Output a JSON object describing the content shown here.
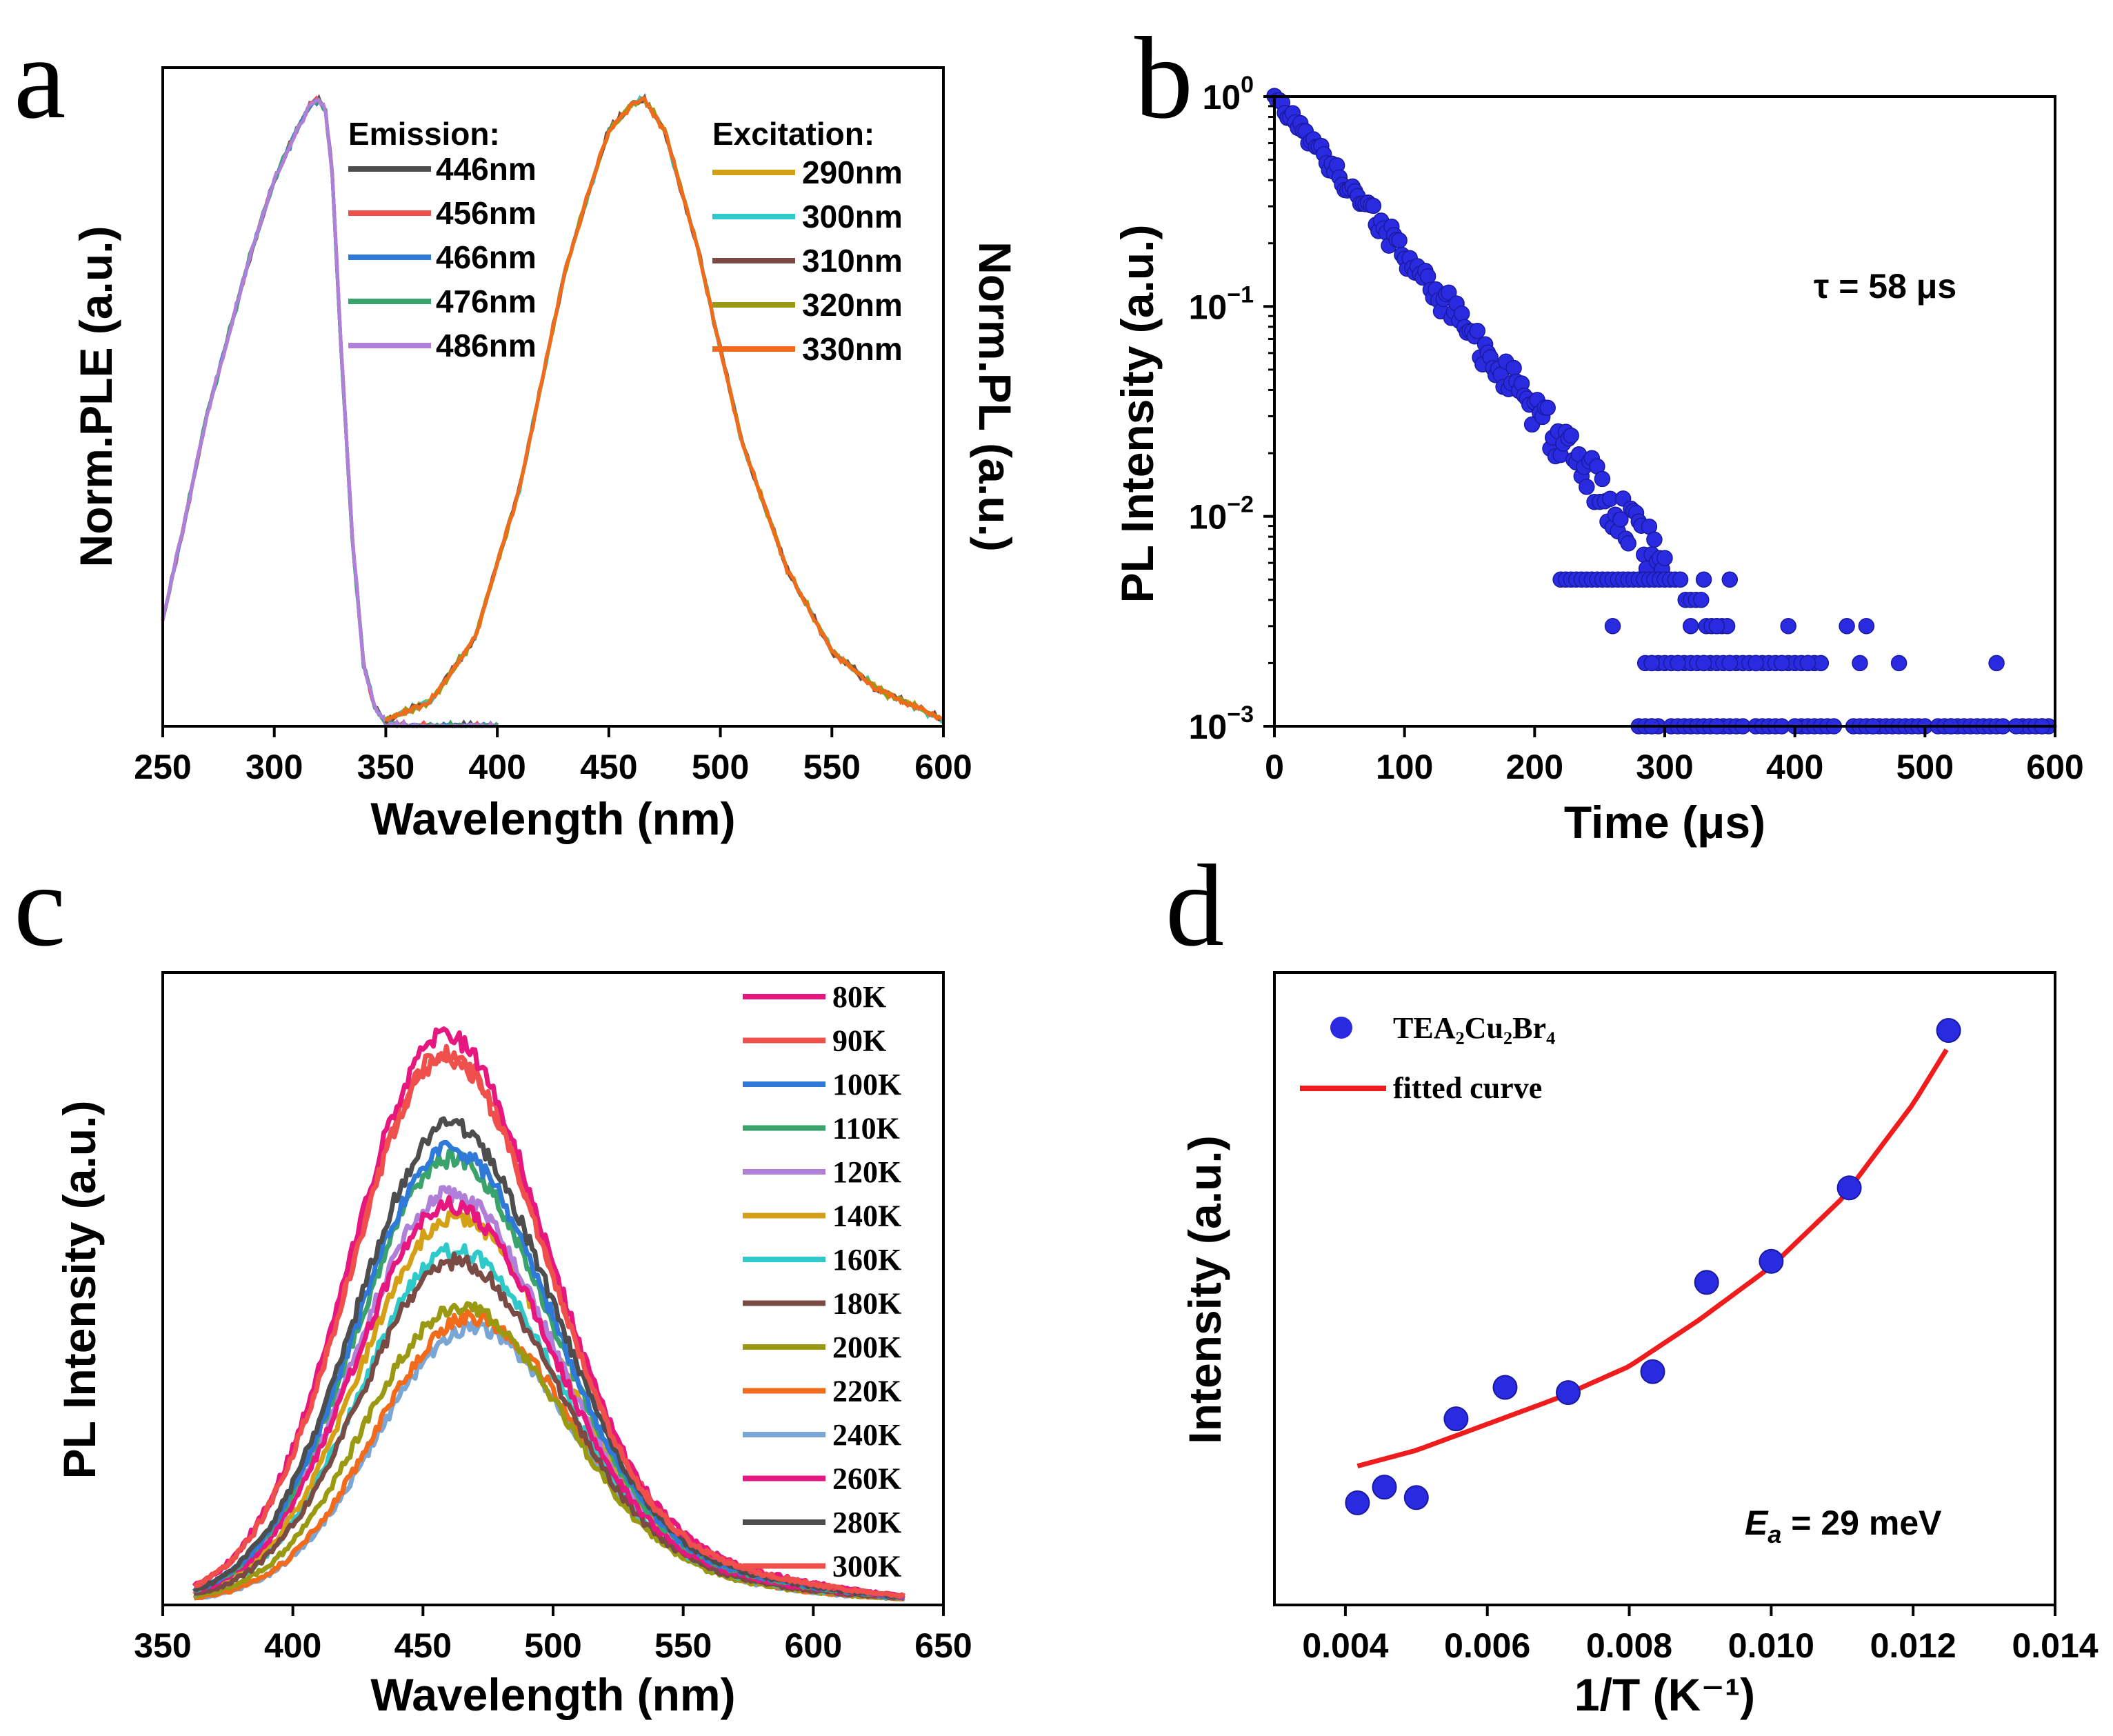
{
  "chart_data": [
    {
      "panel": "a",
      "type": "line",
      "xlabel": "Wavelength (nm)",
      "ylabel_left": "Norm.PLE (a.u.)",
      "ylabel_right": "Norm.PL (a.u.)",
      "xlim": [
        250,
        600
      ],
      "ylim": [
        0,
        1.05
      ],
      "xticks": [
        250,
        300,
        350,
        400,
        450,
        500,
        550,
        600
      ],
      "emission_legend_title": "Emission:",
      "excitation_legend_title": "Excitation:",
      "ple_series": [
        {
          "name": "446nm",
          "color": "#4d4d4d"
        },
        {
          "name": "456nm",
          "color": "#f0504c"
        },
        {
          "name": "466nm",
          "color": "#2f7ad8"
        },
        {
          "name": "476nm",
          "color": "#3aa36b"
        },
        {
          "name": "486nm",
          "color": "#b07fd9"
        }
      ],
      "pl_series": [
        {
          "name": "290nm",
          "color": "#d4a015"
        },
        {
          "name": "300nm",
          "color": "#2fc9c9"
        },
        {
          "name": "310nm",
          "color": "#7a4a45"
        },
        {
          "name": "320nm",
          "color": "#9a9a12"
        },
        {
          "name": "330nm",
          "color": "#f26a1b"
        }
      ],
      "ple_curve": {
        "x": [
          250,
          260,
          270,
          280,
          290,
          300,
          310,
          316,
          320,
          323,
          326,
          330,
          335,
          340,
          345,
          350,
          360,
          400
        ],
        "y": [
          0.17,
          0.33,
          0.5,
          0.63,
          0.76,
          0.87,
          0.95,
          0.99,
          1.0,
          0.98,
          0.88,
          0.6,
          0.3,
          0.1,
          0.03,
          0.005,
          0.0,
          0.0
        ]
      },
      "pl_curve": {
        "x": [
          350,
          370,
          390,
          410,
          420,
          430,
          440,
          450,
          460,
          466,
          475,
          490,
          500,
          510,
          530,
          550,
          570,
          600
        ],
        "y": [
          0.01,
          0.04,
          0.14,
          0.38,
          0.55,
          0.72,
          0.84,
          0.95,
          0.99,
          1.0,
          0.95,
          0.76,
          0.6,
          0.45,
          0.25,
          0.12,
          0.06,
          0.01
        ]
      }
    },
    {
      "panel": "b",
      "type": "scatter",
      "xlabel": "Time (μs)",
      "ylabel": "PL Intensity (a.u.)",
      "xlim": [
        0,
        600
      ],
      "ylim_log10": [
        -3,
        0
      ],
      "xticks": [
        0,
        100,
        200,
        300,
        400,
        500,
        600
      ],
      "yticks": [
        {
          "base": "10",
          "exp": "0"
        },
        {
          "base": "10",
          "exp": "−1"
        },
        {
          "base": "10",
          "exp": "−2"
        },
        {
          "base": "10",
          "exp": "−3"
        }
      ],
      "annotation": "τ = 58 μs",
      "tau_us": 58,
      "marker_color": "#2a2ae0",
      "tail_levels": [
        0.001,
        0.002,
        0.003,
        0.004,
        0.005
      ],
      "tail_points": [
        {
          "x": 290,
          "y": 0.002
        },
        {
          "x": 310,
          "y": 0.002
        },
        {
          "x": 330,
          "y": 0.002
        },
        {
          "x": 350,
          "y": 0.002
        },
        {
          "x": 370,
          "y": 0.002
        },
        {
          "x": 390,
          "y": 0.002
        },
        {
          "x": 410,
          "y": 0.002
        },
        {
          "x": 450,
          "y": 0.002
        },
        {
          "x": 480,
          "y": 0.002
        },
        {
          "x": 555,
          "y": 0.002
        },
        {
          "x": 260,
          "y": 0.003
        },
        {
          "x": 320,
          "y": 0.003
        },
        {
          "x": 340,
          "y": 0.003
        },
        {
          "x": 395,
          "y": 0.003
        },
        {
          "x": 440,
          "y": 0.003
        },
        {
          "x": 455,
          "y": 0.003
        },
        {
          "x": 290,
          "y": 0.001
        },
        {
          "x": 340,
          "y": 0.001
        },
        {
          "x": 400,
          "y": 0.001
        },
        {
          "x": 460,
          "y": 0.001
        },
        {
          "x": 520,
          "y": 0.001
        },
        {
          "x": 570,
          "y": 0.001
        },
        {
          "x": 590,
          "y": 0.001
        },
        {
          "x": 330,
          "y": 0.005
        },
        {
          "x": 350,
          "y": 0.005
        }
      ]
    },
    {
      "panel": "c",
      "type": "line",
      "xlabel": "Wavelength (nm)",
      "ylabel": "PL Intensity (a.u.)",
      "xlim": [
        350,
        650
      ],
      "xticks": [
        350,
        400,
        450,
        500,
        550,
        600,
        650
      ],
      "series": [
        {
          "name": "80K",
          "color": "#e6177f",
          "peak": 458,
          "amp": 1.0
        },
        {
          "name": "90K",
          "color": "#f0504c",
          "peak": 458,
          "amp": 0.97
        },
        {
          "name": "100K",
          "color": "#2f7ad8",
          "peak": 460,
          "amp": 0.8
        },
        {
          "name": "110K",
          "color": "#3aa36b",
          "peak": 460,
          "amp": 0.78
        },
        {
          "name": "120K",
          "color": "#b07fd9",
          "peak": 460,
          "amp": 0.72
        },
        {
          "name": "140K",
          "color": "#d4a015",
          "peak": 462,
          "amp": 0.68
        },
        {
          "name": "160K",
          "color": "#2fc9c9",
          "peak": 462,
          "amp": 0.62
        },
        {
          "name": "180K",
          "color": "#7a4a45",
          "peak": 462,
          "amp": 0.6
        },
        {
          "name": "200K",
          "color": "#9a9a12",
          "peak": 464,
          "amp": 0.52
        },
        {
          "name": "220K",
          "color": "#f26a1b",
          "peak": 468,
          "amp": 0.5
        },
        {
          "name": "240K",
          "color": "#7aa6d6",
          "peak": 468,
          "amp": 0.48
        },
        {
          "name": "260K",
          "color": "#e6177f",
          "peak": 460,
          "amp": 0.7
        },
        {
          "name": "280K",
          "color": "#4d4d4d",
          "peak": 460,
          "amp": 0.84
        },
        {
          "name": "300K",
          "color": "#f0504c",
          "peak": 458,
          "amp": 0.96
        }
      ]
    },
    {
      "panel": "d",
      "type": "scatter",
      "xlabel": "1/T (K⁻¹)",
      "ylabel": "Intensity (a.u.)",
      "xlim": [
        0.003,
        0.014
      ],
      "ylim": [
        0,
        1
      ],
      "xticks": [
        "0.004",
        "0.006",
        "0.008",
        "0.010",
        "0.012",
        "0.014"
      ],
      "legend": {
        "points": "TEA₂Cu₂Br₄",
        "fit": "fitted curve"
      },
      "annotation_prefix": "E",
      "annotation_sub": "a",
      "annotation_suffix": " = 29 meV",
      "points_x": [
        0.00417,
        0.00455,
        0.005,
        0.00556,
        0.00625,
        0.00714,
        0.00833,
        0.00909,
        0.01,
        0.0111,
        0.0125
      ],
      "points_y": [
        0.1,
        0.13,
        0.11,
        0.26,
        0.32,
        0.31,
        0.35,
        0.52,
        0.56,
        0.7,
        1.0
      ],
      "fit_x": [
        0.00417,
        0.005,
        0.006,
        0.007,
        0.008,
        0.009,
        0.01,
        0.011,
        0.012,
        0.0125
      ],
      "fit_y": [
        0.17,
        0.2,
        0.25,
        0.3,
        0.36,
        0.45,
        0.55,
        0.68,
        0.86,
        0.97
      ],
      "point_color": "#2a2ae0",
      "fit_color": "#ee1c1c"
    }
  ]
}
